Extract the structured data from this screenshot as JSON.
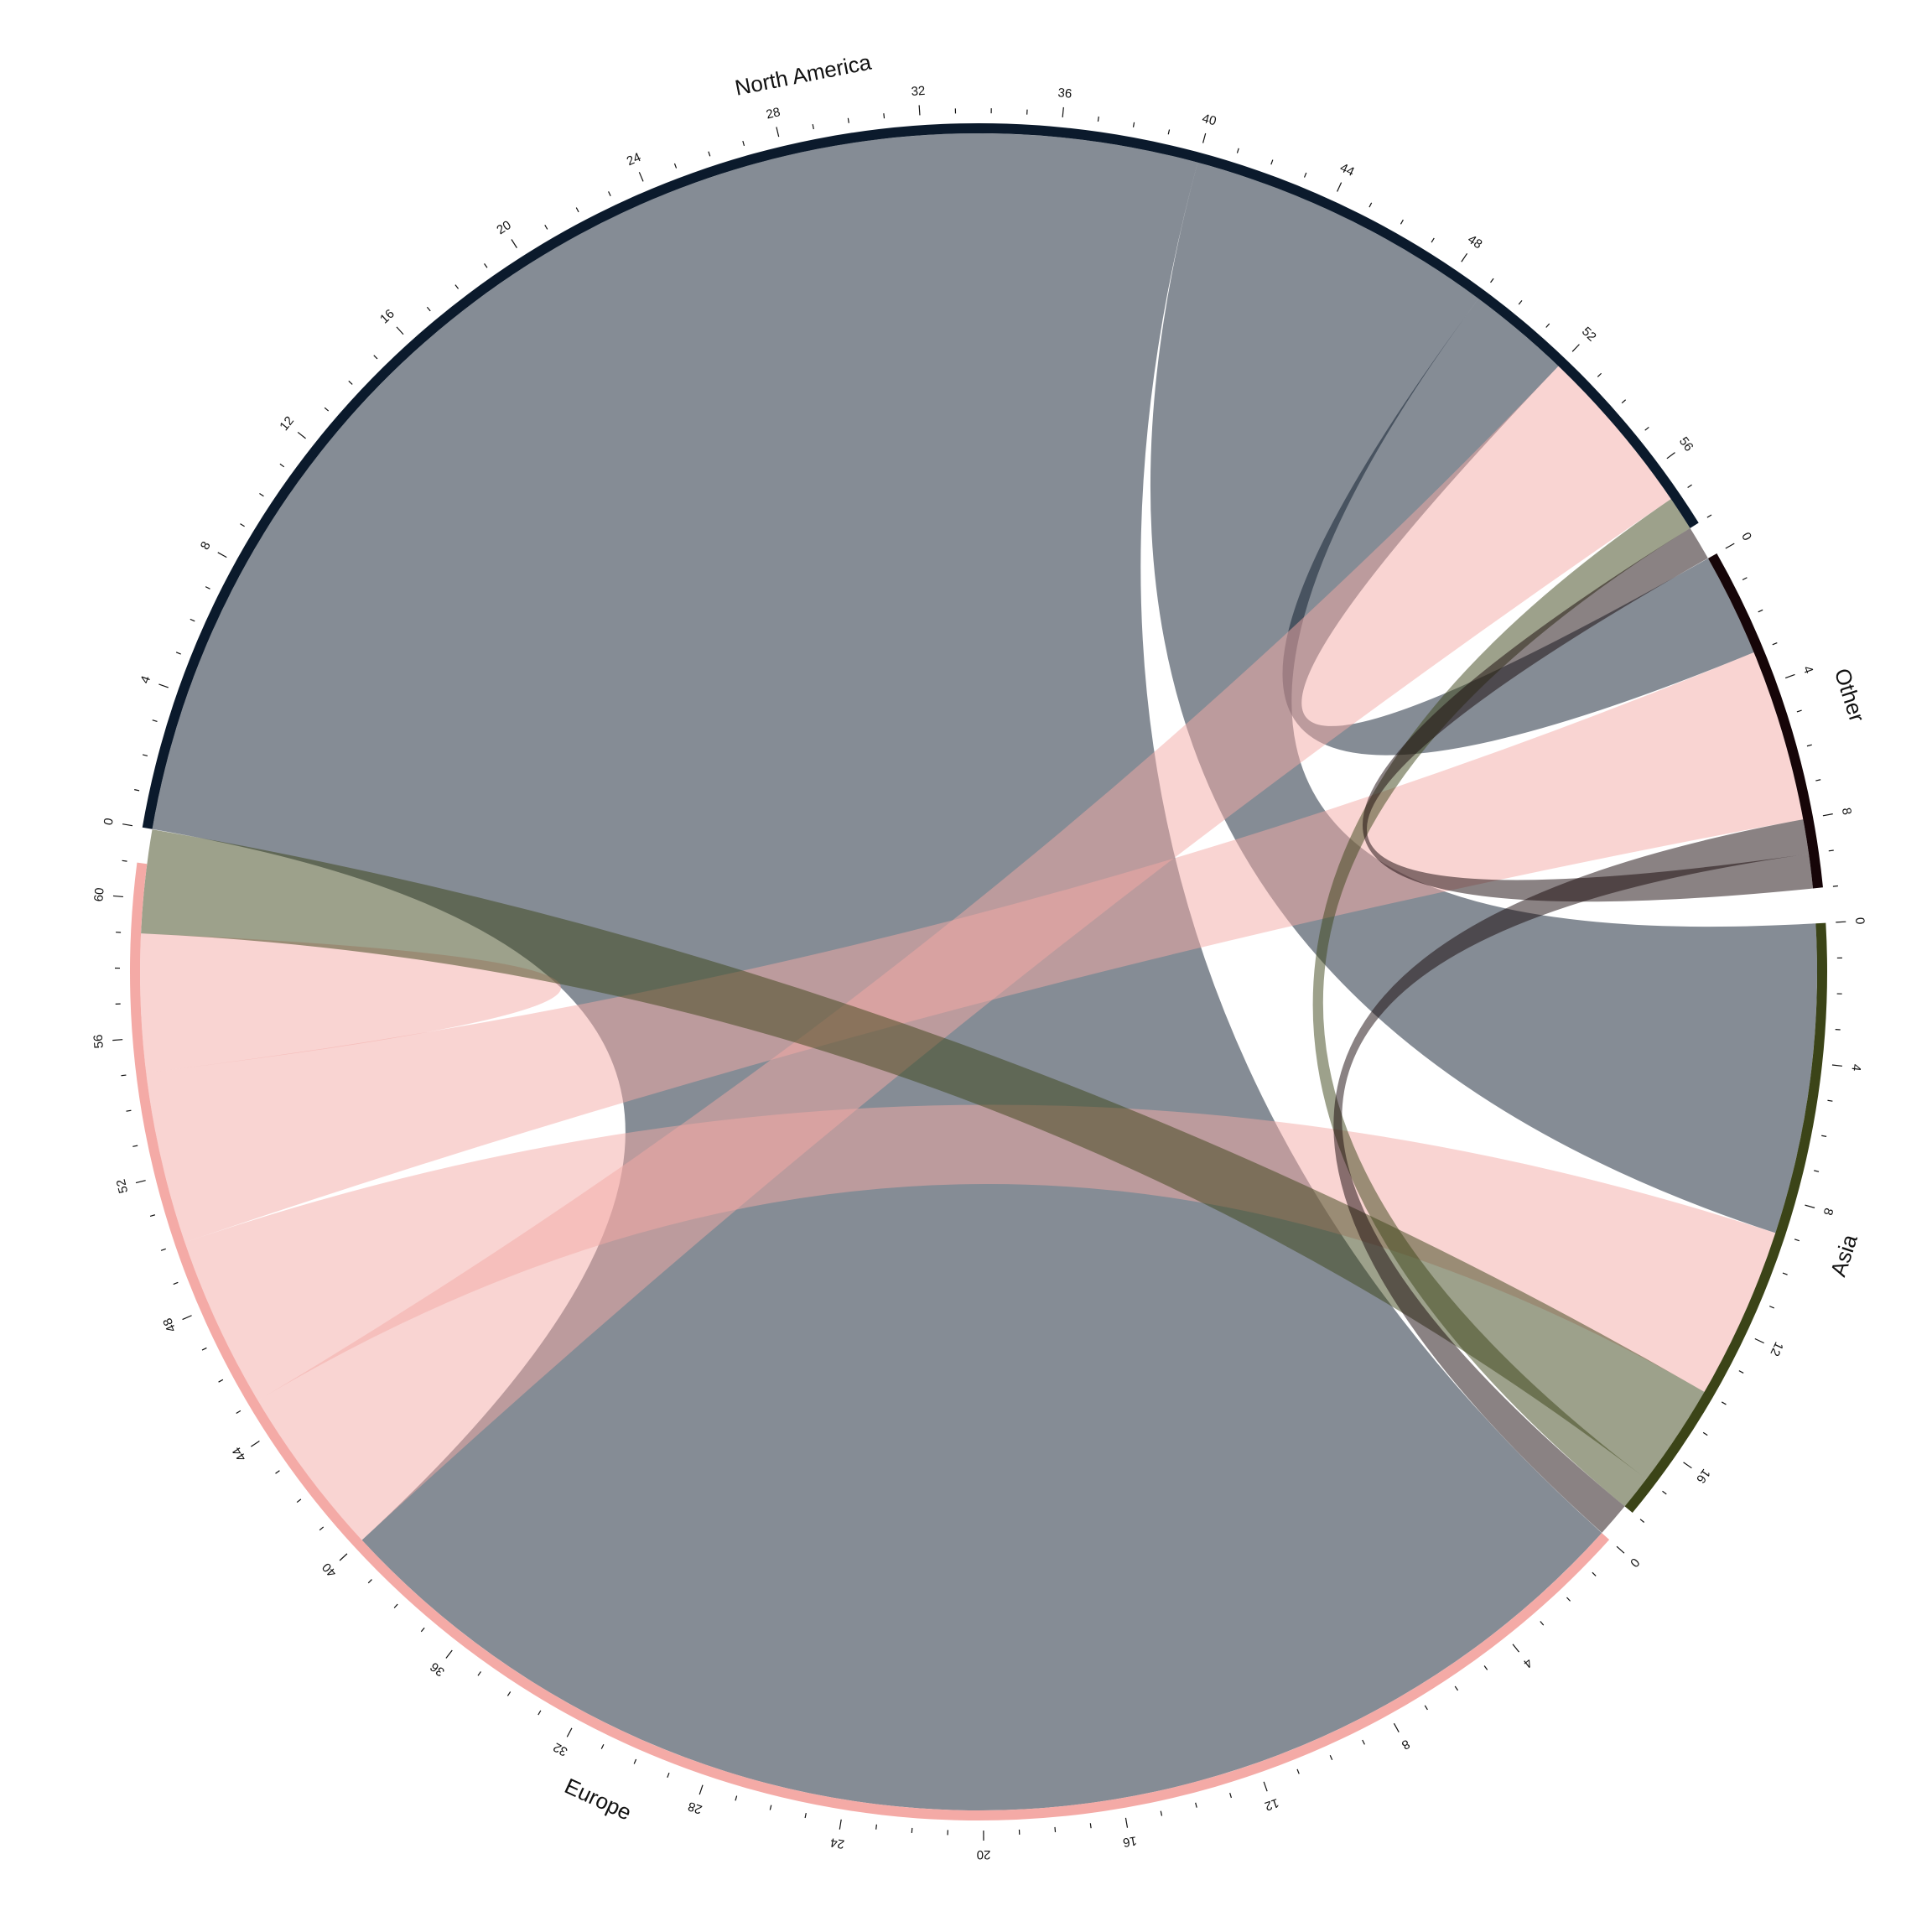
{
  "chart_data": {
    "type": "chord",
    "title": "",
    "sectors": [
      {
        "name": "North America",
        "color": "#0b1a2c",
        "total": 58
      },
      {
        "name": "Other",
        "color": "#160508",
        "total": 10
      },
      {
        "name": "Asia",
        "color": "#3b4417",
        "total": 18
      },
      {
        "name": "Europe",
        "color": "#f4aaa6",
        "total": 61
      }
    ],
    "links": [
      {
        "from": "North America",
        "to": "Europe",
        "value": 40
      },
      {
        "from": "North America",
        "to": "Asia",
        "value": 9
      },
      {
        "from": "North America",
        "to": "Other",
        "value": 3
      },
      {
        "from": "Europe",
        "to": "North America",
        "value": 5
      },
      {
        "from": "Europe",
        "to": "Asia",
        "value": 5
      },
      {
        "from": "Europe",
        "to": "Other",
        "value": 5
      },
      {
        "from": "Europe",
        "to": "Europe",
        "value": 2
      },
      {
        "from": "Asia",
        "to": "Europe",
        "value": 3
      },
      {
        "from": "Asia",
        "to": "North America",
        "value": 1
      },
      {
        "from": "Other",
        "to": "Asia",
        "value": 1
      },
      {
        "from": "Other",
        "to": "North America",
        "value": 1
      }
    ],
    "tick_step": 4,
    "link_opacity": 0.5
  }
}
